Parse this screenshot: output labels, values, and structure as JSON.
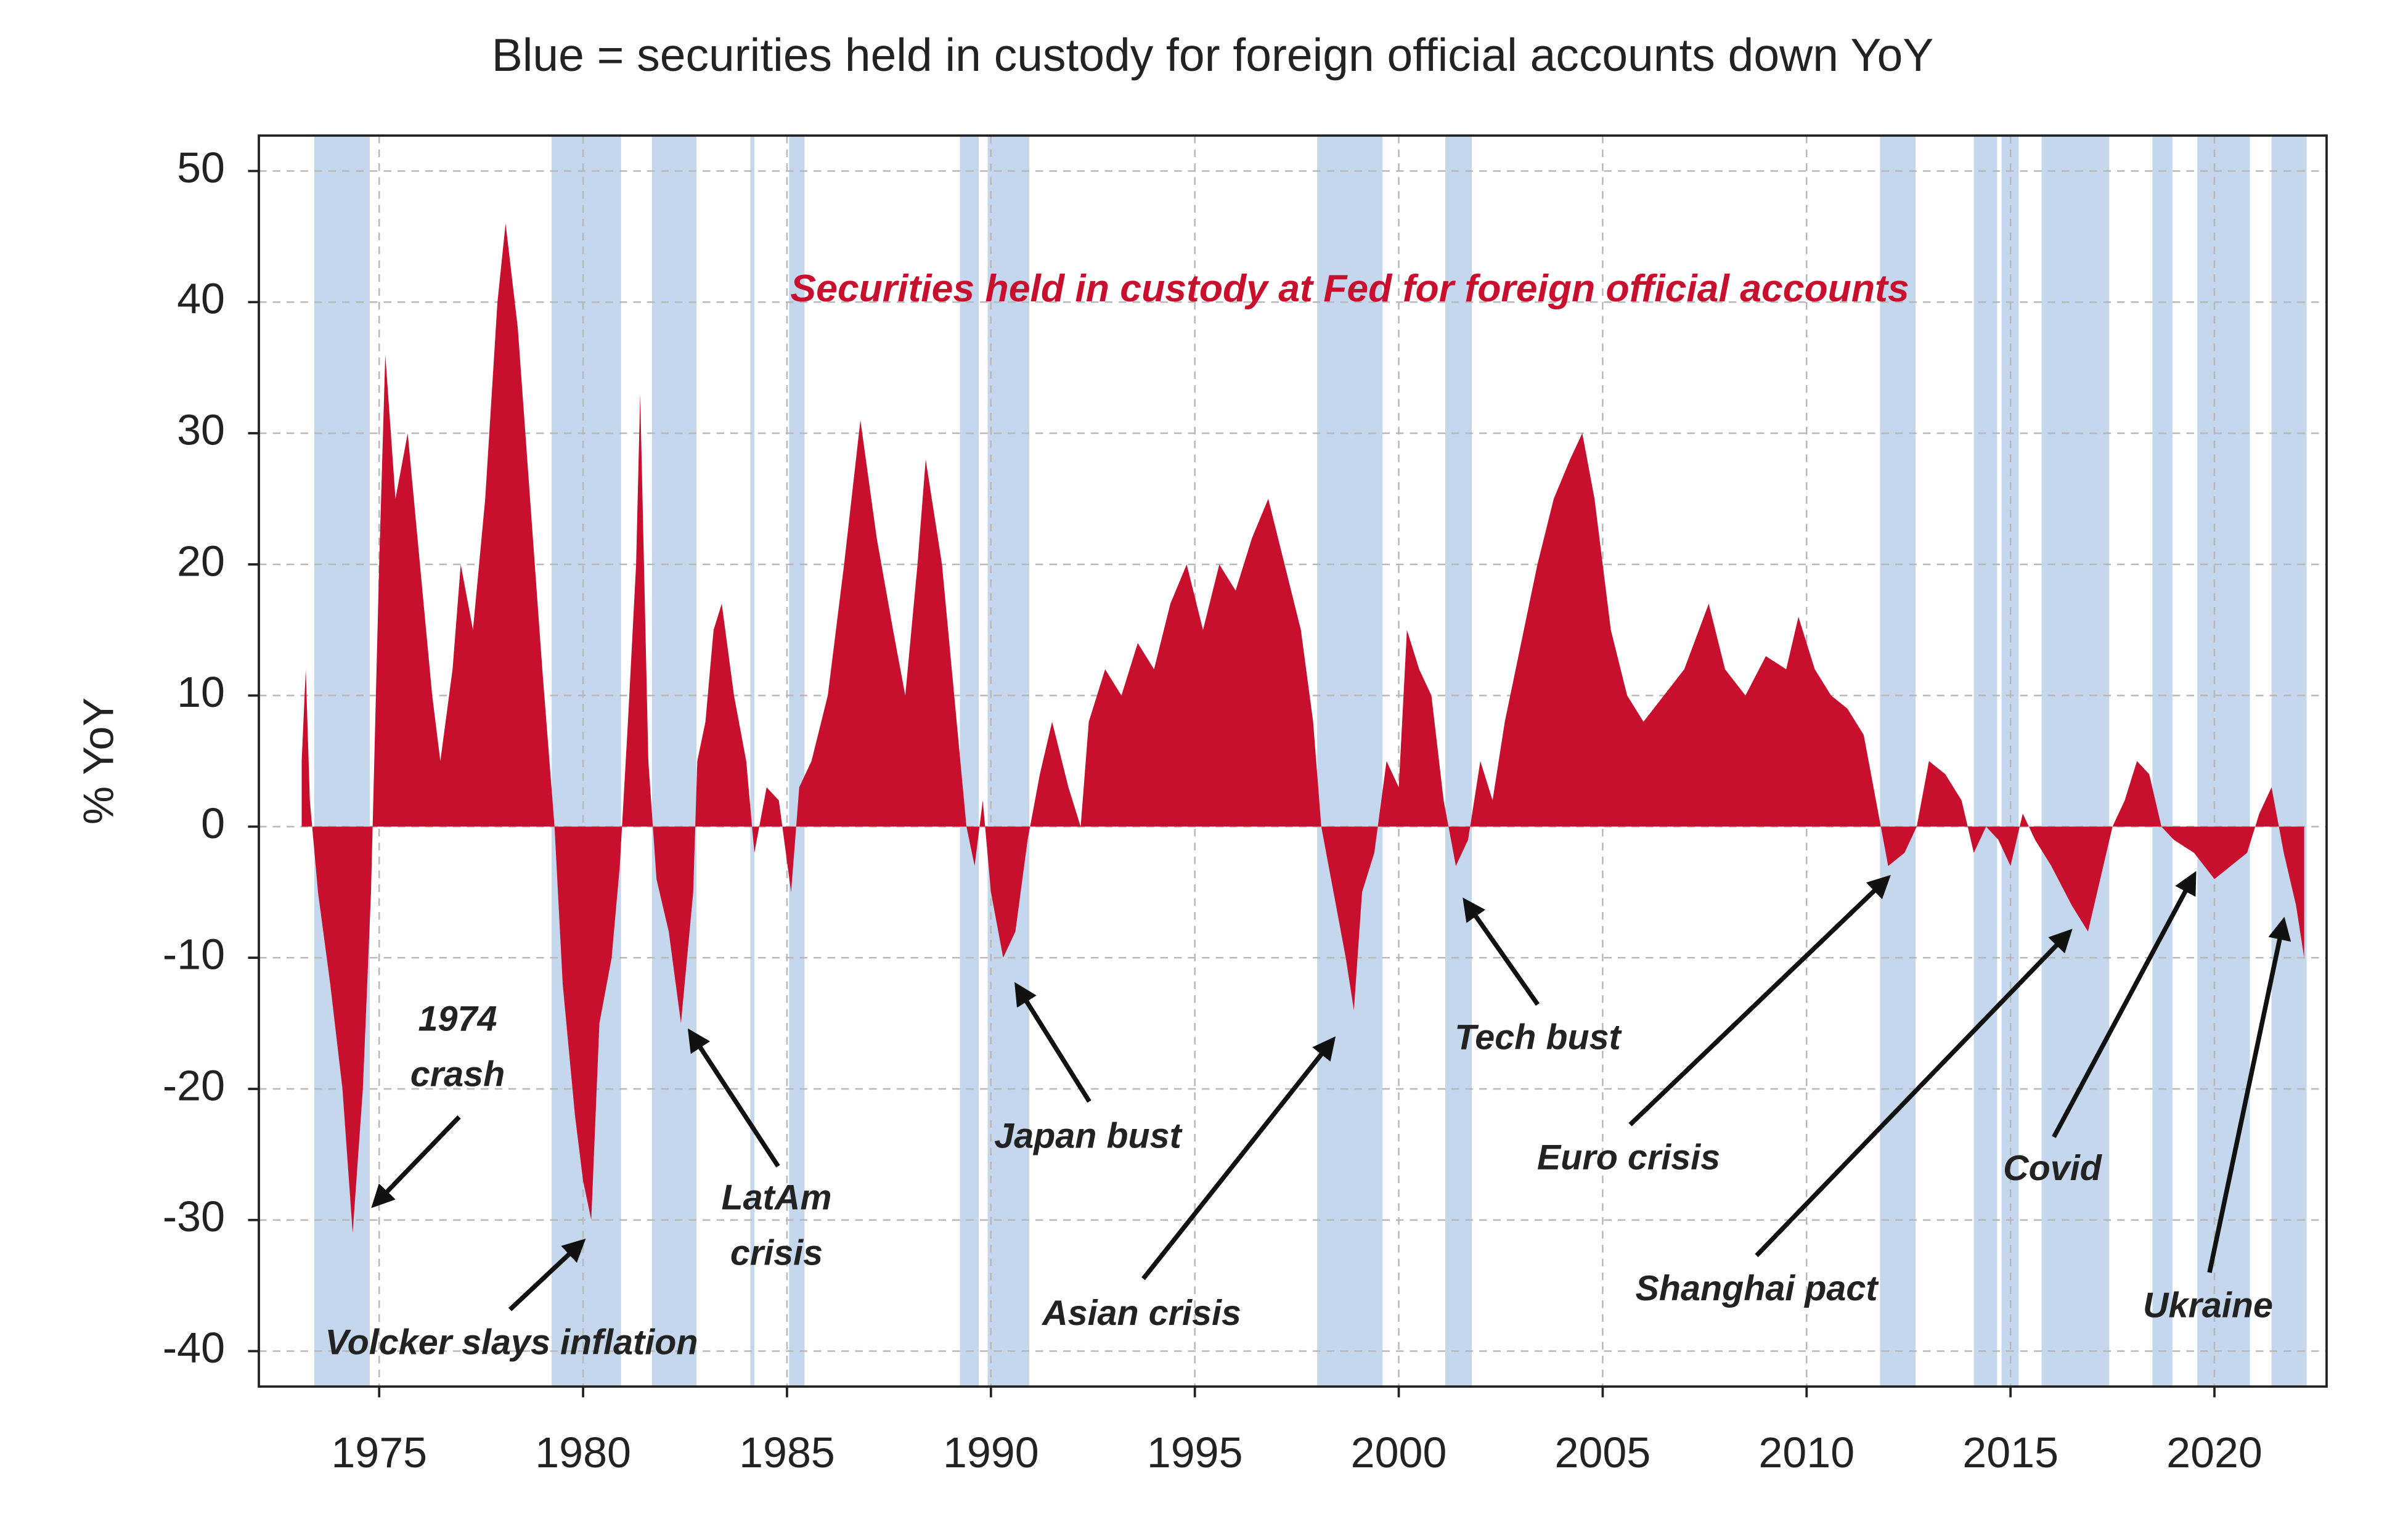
{
  "chart_data": {
    "type": "area",
    "title": "Blue = securities held in custody for foreign official accounts down YoY",
    "ylabel": "% YoY",
    "xlim": [
      1972.05,
      2022.75
    ],
    "ylim": [
      -42.7,
      52.7
    ],
    "xticks": [
      1975,
      1980,
      1985,
      1990,
      1995,
      2000,
      2005,
      2010,
      2015,
      2020
    ],
    "yticks": [
      -40,
      -30,
      -20,
      -10,
      0,
      10,
      20,
      30,
      40,
      50
    ],
    "grid": true,
    "shade_color": "#c5d7ec",
    "shaded_periods": [
      [
        1973.41,
        1974.77
      ],
      [
        1979.23,
        1980.93
      ],
      [
        1981.69,
        1982.78
      ],
      [
        1984.1,
        1984.2
      ],
      [
        1985.05,
        1985.43
      ],
      [
        1989.24,
        1989.7
      ],
      [
        1989.92,
        1990.94
      ],
      [
        1998.0,
        1999.6
      ],
      [
        2001.14,
        2001.79
      ],
      [
        2011.8,
        2012.67
      ],
      [
        2014.1,
        2014.67
      ],
      [
        2014.78,
        2015.2
      ],
      [
        2015.76,
        2017.42
      ],
      [
        2018.48,
        2018.97
      ],
      [
        2019.58,
        2020.87
      ],
      [
        2021.4,
        2022.26
      ]
    ],
    "x": [
      1973.1,
      1973.2,
      1973.3,
      1973.5,
      1973.8,
      1974.1,
      1974.35,
      1974.6,
      1974.8,
      1975.0,
      1975.15,
      1975.4,
      1975.7,
      1976.0,
      1976.3,
      1976.5,
      1976.8,
      1977.0,
      1977.3,
      1977.6,
      1977.9,
      1978.1,
      1978.4,
      1978.7,
      1979.0,
      1979.3,
      1979.5,
      1979.8,
      1980.0,
      1980.2,
      1980.4,
      1980.7,
      1980.9,
      1981.1,
      1981.3,
      1981.4,
      1981.6,
      1981.8,
      1982.1,
      1982.4,
      1982.7,
      1982.8,
      1983.0,
      1983.2,
      1983.4,
      1983.7,
      1984.0,
      1984.2,
      1984.5,
      1984.8,
      1985.1,
      1985.3,
      1985.6,
      1986.0,
      1986.4,
      1986.8,
      1987.2,
      1987.6,
      1987.9,
      1988.2,
      1988.4,
      1988.8,
      1989.1,
      1989.4,
      1989.6,
      1989.8,
      1990.0,
      1990.3,
      1990.6,
      1990.9,
      1991.2,
      1991.5,
      1991.9,
      1992.2,
      1992.4,
      1992.8,
      1993.2,
      1993.6,
      1994.0,
      1994.4,
      1994.8,
      1995.2,
      1995.6,
      1996.0,
      1996.4,
      1996.8,
      1997.2,
      1997.6,
      1997.9,
      1998.1,
      1998.4,
      1998.7,
      1998.9,
      1999.1,
      1999.4,
      1999.7,
      2000.0,
      2000.2,
      2000.5,
      2000.8,
      2001.1,
      2001.4,
      2001.7,
      2002.0,
      2002.3,
      2002.6,
      2003.0,
      2003.4,
      2003.8,
      2004.2,
      2004.5,
      2004.8,
      2005.2,
      2005.6,
      2006.0,
      2006.5,
      2007.0,
      2007.6,
      2008.0,
      2008.5,
      2009.0,
      2009.5,
      2009.8,
      2010.2,
      2010.6,
      2011.0,
      2011.4,
      2011.7,
      2012.0,
      2012.4,
      2012.7,
      2013.0,
      2013.4,
      2013.8,
      2014.1,
      2014.4,
      2014.7,
      2015.0,
      2015.3,
      2015.6,
      2016.0,
      2016.5,
      2016.9,
      2017.2,
      2017.5,
      2017.8,
      2018.1,
      2018.4,
      2018.7,
      2019.0,
      2019.5,
      2020.0,
      2020.4,
      2020.8,
      2021.1,
      2021.4,
      2021.7,
      2022.0,
      2022.2
    ],
    "series": [
      {
        "name": "Securities held in custody at Fed for foreign official accounts",
        "color": "#c8102e",
        "values": [
          5,
          12,
          2,
          -5,
          -12,
          -20,
          -31,
          -20,
          -5,
          20,
          36,
          25,
          30,
          20,
          10,
          5,
          12,
          20,
          15,
          25,
          40,
          46,
          38,
          25,
          12,
          0,
          -12,
          -22,
          -27,
          -30,
          -15,
          -10,
          -3,
          8,
          20,
          33,
          5,
          -4,
          -8,
          -15,
          -5,
          5,
          8,
          15,
          17,
          10,
          5,
          -2,
          3,
          2,
          -5,
          3,
          5,
          10,
          20,
          31,
          22,
          15,
          10,
          20,
          28,
          20,
          10,
          0,
          -3,
          2,
          -5,
          -10,
          -8,
          -1,
          4,
          8,
          3,
          0,
          8,
          12,
          10,
          14,
          12,
          17,
          20,
          15,
          20,
          18,
          22,
          25,
          20,
          15,
          8,
          0,
          -5,
          -10,
          -14,
          -5,
          -2,
          5,
          3,
          15,
          12,
          10,
          2,
          -3,
          -1,
          5,
          2,
          8,
          14,
          20,
          25,
          28,
          30,
          25,
          15,
          10,
          8,
          10,
          12,
          17,
          12,
          10,
          13,
          12,
          16,
          12,
          10,
          9,
          7,
          2,
          -3,
          -2,
          0,
          5,
          4,
          2,
          -2,
          0,
          -1,
          -3,
          1,
          -1,
          -3,
          -6,
          -8,
          -4,
          0,
          2,
          5,
          4,
          0,
          -1,
          -2,
          -4,
          -3,
          -2,
          1,
          3,
          -2,
          -6,
          -10
        ]
      }
    ],
    "annotations": [
      [
        "1974",
        "crash"
      ],
      [
        "Volcker slays inflation"
      ],
      [
        "LatAm",
        "crisis"
      ],
      [
        "Japan bust"
      ],
      [
        "Asian crisis"
      ],
      [
        "Tech bust"
      ],
      [
        "Euro crisis"
      ],
      [
        "Shanghai pact"
      ],
      [
        "Covid"
      ],
      [
        "Ukraine"
      ]
    ]
  }
}
